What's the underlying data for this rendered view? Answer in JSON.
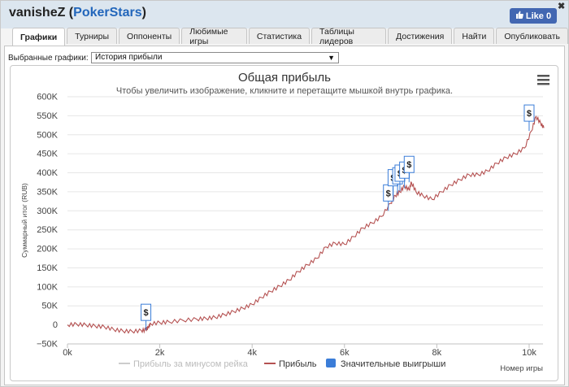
{
  "header": {
    "player": "vanisheZ",
    "site": "PokerStars",
    "like_label": "Like 0",
    "close_glyph": "✖"
  },
  "tabs": [
    {
      "label": "Графики",
      "active": true
    },
    {
      "label": "Турниры"
    },
    {
      "label": "Оппоненты"
    },
    {
      "label": "Любимые игры"
    },
    {
      "label": "Статистика"
    },
    {
      "label": "Таблицы лидеров"
    },
    {
      "label": "Достижения"
    },
    {
      "label": "Найти"
    },
    {
      "label": "Опубликовать"
    }
  ],
  "selector": {
    "label": "Выбранные графики:",
    "value": "История прибыли"
  },
  "chart_data": {
    "type": "line",
    "title": "Общая прибыль",
    "subtitle": "Чтобы увеличить изображение, кликните и перетащите мышкой внутрь графика.",
    "ylabel": "Суммарный итог (RUB)",
    "xlabel": "Номер игры",
    "xlim": [
      0,
      10300
    ],
    "ylim": [
      -50000,
      600000
    ],
    "x_ticks": [
      0,
      2000,
      4000,
      6000,
      8000,
      10000
    ],
    "x_tick_labels": [
      "0k",
      "2k",
      "4k",
      "6k",
      "8k",
      "10k"
    ],
    "y_ticks": [
      -50000,
      0,
      50000,
      100000,
      150000,
      200000,
      250000,
      300000,
      350000,
      400000,
      450000,
      500000,
      550000,
      600000
    ],
    "y_tick_labels": [
      "−50K",
      "0",
      "50K",
      "100K",
      "150K",
      "200K",
      "250K",
      "300K",
      "350K",
      "400K",
      "450K",
      "500K",
      "550K",
      "600K"
    ],
    "grid": true,
    "legend_position": "bottom",
    "legend": [
      {
        "name": "Прибыль за минусом рейка",
        "color": "#cccccc",
        "symbol": "line"
      },
      {
        "name": "Прибыль",
        "color": "#b55252",
        "symbol": "line"
      },
      {
        "name": "Значительные выигрыши",
        "color": "#3b7dd8",
        "symbol": "square"
      }
    ],
    "series": [
      {
        "name": "Прибыль",
        "color": "#b55252",
        "points": [
          [
            0,
            0
          ],
          [
            200,
            2000
          ],
          [
            400,
            0
          ],
          [
            600,
            -3000
          ],
          [
            800,
            -5000
          ],
          [
            1000,
            -12000
          ],
          [
            1200,
            -16000
          ],
          [
            1400,
            -17000
          ],
          [
            1600,
            -15000
          ],
          [
            1700,
            -13000
          ],
          [
            1750,
            -6000
          ],
          [
            1800,
            3000
          ],
          [
            2000,
            6000
          ],
          [
            2200,
            8000
          ],
          [
            2500,
            12000
          ],
          [
            2800,
            15000
          ],
          [
            3000,
            17000
          ],
          [
            3200,
            20000
          ],
          [
            3400,
            27000
          ],
          [
            3600,
            35000
          ],
          [
            3800,
            44000
          ],
          [
            4000,
            54000
          ],
          [
            4200,
            72000
          ],
          [
            4400,
            88000
          ],
          [
            4600,
            102000
          ],
          [
            4800,
            118000
          ],
          [
            5000,
            140000
          ],
          [
            5200,
            158000
          ],
          [
            5400,
            175000
          ],
          [
            5600,
            205000
          ],
          [
            5800,
            215000
          ],
          [
            6000,
            212000
          ],
          [
            6200,
            232000
          ],
          [
            6400,
            255000
          ],
          [
            6600,
            268000
          ],
          [
            6800,
            285000
          ],
          [
            7000,
            320000
          ],
          [
            7100,
            340000
          ],
          [
            7200,
            350000
          ],
          [
            7300,
            365000
          ],
          [
            7400,
            355000
          ],
          [
            7450,
            375000
          ],
          [
            7550,
            350000
          ],
          [
            7700,
            340000
          ],
          [
            7900,
            330000
          ],
          [
            8100,
            350000
          ],
          [
            8300,
            368000
          ],
          [
            8500,
            382000
          ],
          [
            8700,
            395000
          ],
          [
            8900,
            395000
          ],
          [
            9100,
            405000
          ],
          [
            9300,
            425000
          ],
          [
            9500,
            440000
          ],
          [
            9700,
            450000
          ],
          [
            9900,
            465000
          ],
          [
            10050,
            510000
          ],
          [
            10150,
            548000
          ],
          [
            10250,
            530000
          ],
          [
            10320,
            518000
          ]
        ]
      }
    ],
    "flags": [
      {
        "x": 1700,
        "y": -14000,
        "label": "$"
      },
      {
        "x": 6950,
        "y": 300000,
        "label": "$"
      },
      {
        "x": 7050,
        "y": 340000,
        "label": "$"
      },
      {
        "x": 7150,
        "y": 345000,
        "label": "$"
      },
      {
        "x": 7200,
        "y": 352000,
        "label": "$"
      },
      {
        "x": 7300,
        "y": 360000,
        "label": "$"
      },
      {
        "x": 7400,
        "y": 375000,
        "label": "$"
      },
      {
        "x": 10000,
        "y": 510000,
        "label": "$"
      }
    ]
  }
}
